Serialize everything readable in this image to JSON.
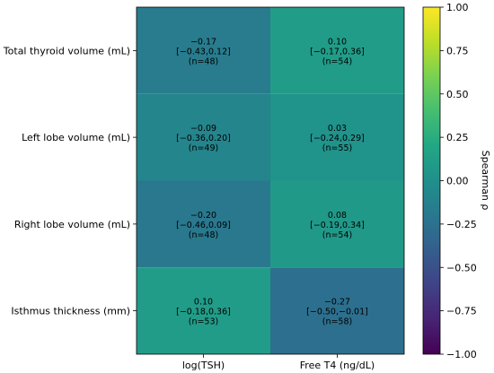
{
  "chart_data": {
    "type": "heatmap",
    "rows": [
      "Total thyroid volume (mL)",
      "Left lobe volume (mL)",
      "Right lobe volume (mL)",
      "Isthmus thickness (mm)"
    ],
    "columns": [
      "log(TSH)",
      "Free T4 (ng/dL)"
    ],
    "values": [
      [
        -0.17,
        0.1
      ],
      [
        -0.09,
        0.03
      ],
      [
        -0.2,
        0.08
      ],
      [
        0.1,
        -0.27
      ]
    ],
    "cell_labels": [
      [
        [
          "−0.17",
          "[−0.43,0.12]",
          "(n=48)"
        ],
        [
          "0.10",
          "[−0.17,0.36]",
          "(n=54)"
        ]
      ],
      [
        [
          "−0.09",
          "[−0.36,0.20]",
          "(n=49)"
        ],
        [
          "0.03",
          "[−0.24,0.29]",
          "(n=55)"
        ]
      ],
      [
        [
          "−0.20",
          "[−0.46,0.09]",
          "(n=48)"
        ],
        [
          "0.08",
          "[−0.19,0.34]",
          "(n=54)"
        ]
      ],
      [
        [
          "0.10",
          "[−0.18,0.36]",
          "(n=53)"
        ],
        [
          "−0.27",
          "[−0.50,−0.01]",
          "(n=58)"
        ]
      ]
    ],
    "colorbar": {
      "label": "Spearman ρ",
      "range": [
        -1.0,
        1.0
      ],
      "ticks": [
        1.0,
        0.75,
        0.5,
        0.25,
        0.0,
        -0.25,
        -0.5,
        -0.75,
        -1.0
      ],
      "tick_labels": [
        "1.00",
        "0.75",
        "0.50",
        "0.25",
        "0.00",
        "−0.25",
        "−0.50",
        "−0.75",
        "−1.00"
      ],
      "colormap": "viridis"
    }
  }
}
